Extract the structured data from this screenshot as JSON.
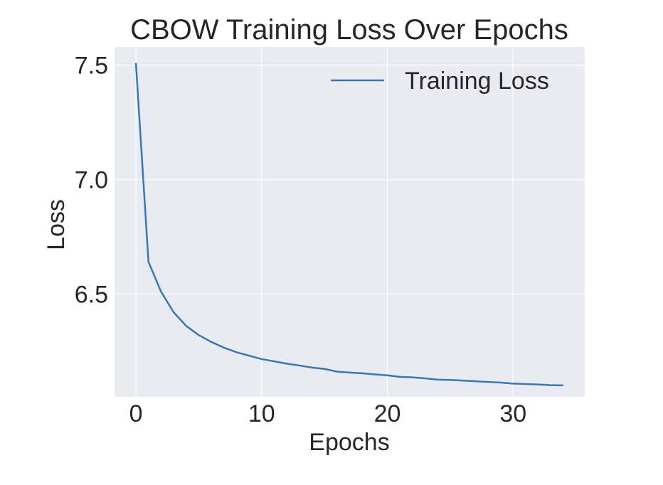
{
  "chart_data": {
    "type": "line",
    "title": "CBOW Training Loss Over Epochs",
    "xlabel": "Epochs",
    "ylabel": "Loss",
    "xlim": [
      -1.7,
      35.7
    ],
    "ylim": [
      6.05,
      7.58
    ],
    "xticks": [
      0,
      10,
      20,
      30
    ],
    "yticks": [
      6.5,
      7.0,
      7.5
    ],
    "ytick_labels": [
      "6.5",
      "7.0",
      "7.5"
    ],
    "grid": true,
    "legend": "upper-right",
    "series": [
      {
        "name": "Training Loss",
        "color": "#3a78b2",
        "x": [
          0,
          1,
          2,
          3,
          4,
          5,
          6,
          7,
          8,
          9,
          10,
          11,
          12,
          13,
          14,
          15,
          16,
          17,
          18,
          19,
          20,
          21,
          22,
          23,
          24,
          25,
          26,
          27,
          28,
          29,
          30,
          31,
          32,
          33,
          34
        ],
        "values": [
          7.51,
          6.64,
          6.51,
          6.42,
          6.36,
          6.32,
          6.29,
          6.265,
          6.245,
          6.23,
          6.215,
          6.205,
          6.195,
          6.187,
          6.178,
          6.172,
          6.16,
          6.156,
          6.153,
          6.148,
          6.144,
          6.137,
          6.135,
          6.131,
          6.125,
          6.124,
          6.121,
          6.118,
          6.115,
          6.112,
          6.108,
          6.106,
          6.104,
          6.101,
          6.1
        ]
      }
    ]
  }
}
